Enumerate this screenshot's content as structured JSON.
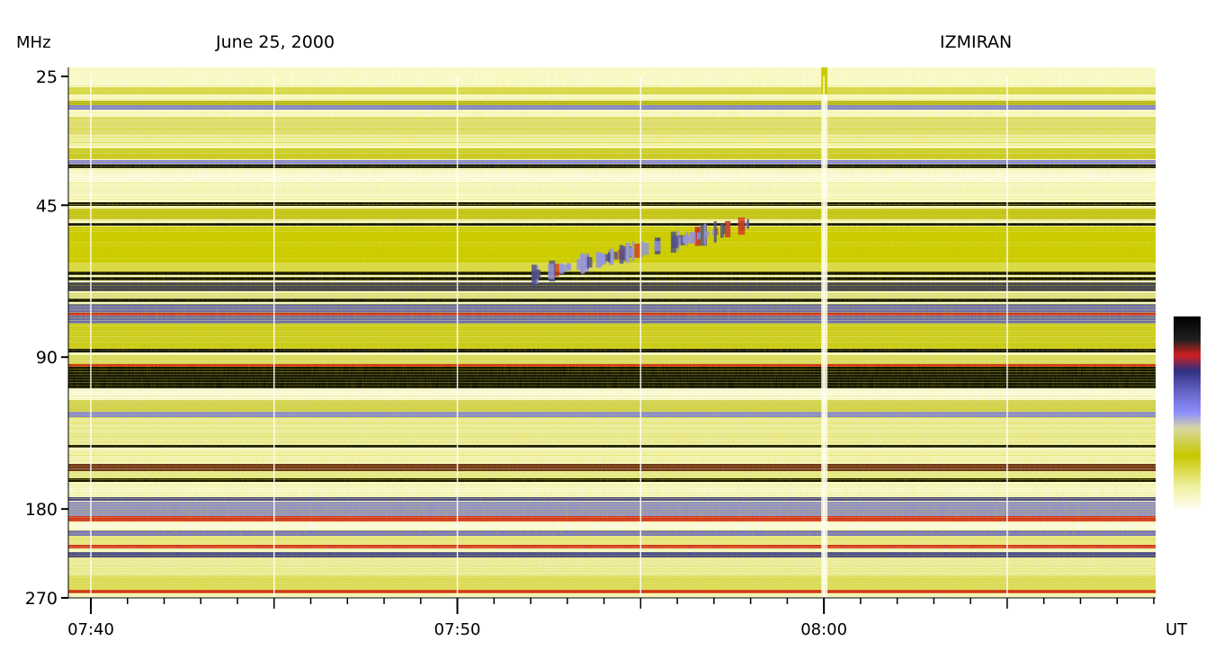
{
  "header": {
    "unit_label": "MHz",
    "date": "June 25, 2000",
    "observatory": "IZMIRAN",
    "time_unit": "UT"
  },
  "chart_data": {
    "type": "heatmap",
    "title": "June 25, 2000",
    "observatory": "IZMIRAN",
    "xlabel": "UT",
    "ylabel": "MHz",
    "x_ticks": [
      "07:40",
      "07:50",
      "08:00"
    ],
    "y_ticks": [
      "25",
      "45",
      "90",
      "180",
      "270"
    ],
    "x_range": [
      "07:39",
      "08:09"
    ],
    "y_range": [
      25,
      270
    ],
    "y_scale": "log",
    "colorbar_colors": [
      "#fefef0",
      "#f4f4b0",
      "#c8c800",
      "#8888ff",
      "#3a3aa0",
      "#d02020",
      "#000000"
    ],
    "features": [
      {
        "kind": "burst",
        "x_range": [
          "07:52",
          "07:58"
        ],
        "y_range": [
          46,
          62
        ]
      },
      {
        "kind": "interference-band",
        "y": 100
      }
    ]
  }
}
